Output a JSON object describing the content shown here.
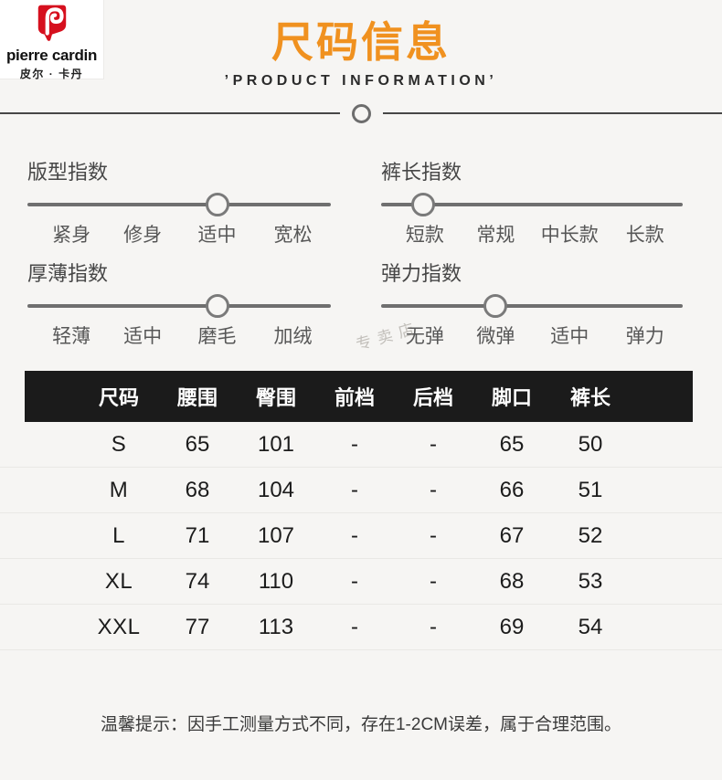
{
  "colors": {
    "accent": "#f0911f",
    "brand_red": "#d6101e",
    "table_header_bg": "#1b1b1b",
    "page_bg": "#f6f5f3"
  },
  "brand": {
    "name": "pierre cardin",
    "name_cn": "皮尔 · 卡丹"
  },
  "header": {
    "title": "尺码信息",
    "subtitle": "’PRODUCT INFORMATION’"
  },
  "watermark": "专卖店",
  "indices": [
    {
      "title": "版型指数",
      "options": [
        "紧身",
        "修身",
        "适中",
        "宽松"
      ],
      "active_index": 2,
      "active_option": "适中"
    },
    {
      "title": "裤长指数",
      "options": [
        "短款",
        "常规",
        "中长款",
        "长款"
      ],
      "active_index": 0,
      "active_option": "短款"
    },
    {
      "title": "厚薄指数",
      "options": [
        "轻薄",
        "适中",
        "磨毛",
        "加绒"
      ],
      "active_index": 2,
      "active_option": "磨毛"
    },
    {
      "title": "弹力指数",
      "options": [
        "无弹",
        "微弹",
        "适中",
        "弹力"
      ],
      "active_index": 1,
      "active_option": "微弹"
    }
  ],
  "size_table": {
    "columns": [
      "尺码",
      "腰围",
      "臀围",
      "前档",
      "后档",
      "脚口",
      "裤长"
    ],
    "rows": [
      [
        "S",
        "65",
        "101",
        "-",
        "-",
        "65",
        "50"
      ],
      [
        "M",
        "68",
        "104",
        "-",
        "-",
        "66",
        "51"
      ],
      [
        "L",
        "71",
        "107",
        "-",
        "-",
        "67",
        "52"
      ],
      [
        "XL",
        "74",
        "110",
        "-",
        "-",
        "68",
        "53"
      ],
      [
        "XXL",
        "77",
        "113",
        "-",
        "-",
        "69",
        "54"
      ]
    ]
  },
  "note": "温馨提示：因手工测量方式不同，存在1-2CM误差，属于合理范围。"
}
